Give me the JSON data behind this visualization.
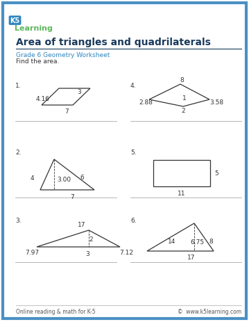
{
  "title": "Area of triangles and quadrilaterals",
  "subtitle": "Grade 6 Geometry Worksheet",
  "instruction": "Find the area.",
  "bg_color": "#ffffff",
  "border_color": "#4a90c4",
  "footer_left": "Online reading & math for K-5",
  "footer_right": "©  www.k5learning.com",
  "text_dark": "#1a3a5c",
  "text_gray": "#555555",
  "text_blue": "#2e86c1",
  "shape_color": "#333333",
  "divider_color": "#aaaaaa",
  "lw": 0.9,
  "fs": 6.5
}
